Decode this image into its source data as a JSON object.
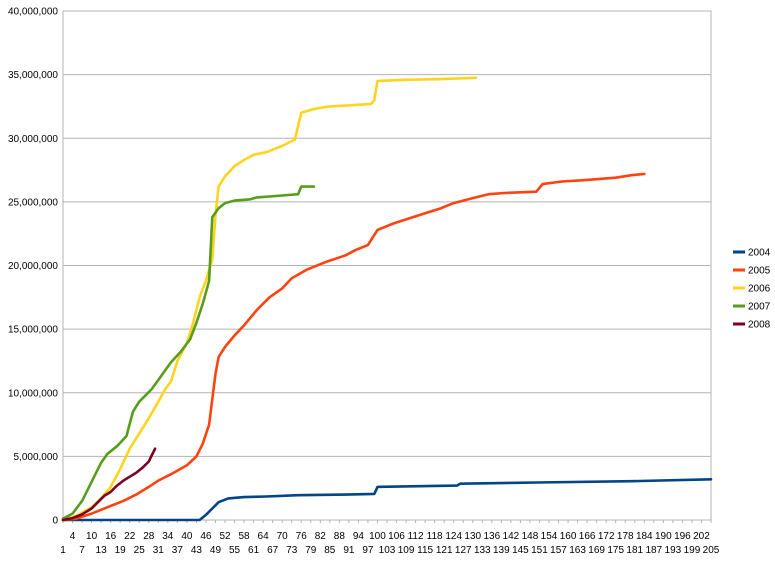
{
  "chart_data": {
    "type": "line",
    "title": "",
    "xlabel": "",
    "ylabel": "",
    "ylim": [
      0,
      40000000
    ],
    "xlim": [
      1,
      205
    ],
    "grid": "horizontal",
    "legend_position": "right",
    "y_ticks": [
      0,
      5000000,
      10000000,
      15000000,
      20000000,
      25000000,
      30000000,
      35000000,
      40000000
    ],
    "y_tick_labels": [
      "0",
      "5,000,000",
      "10,000,000",
      "15,000,000",
      "20,000,000",
      "25,000,000",
      "30,000,000",
      "35,000,000",
      "40,000,000"
    ],
    "x_ticks": [
      1,
      4,
      7,
      10,
      13,
      16,
      19,
      22,
      25,
      28,
      31,
      34,
      37,
      40,
      43,
      46,
      49,
      52,
      55,
      58,
      61,
      64,
      67,
      70,
      73,
      76,
      79,
      82,
      85,
      88,
      91,
      94,
      97,
      100,
      103,
      106,
      109,
      112,
      115,
      118,
      121,
      124,
      127,
      130,
      133,
      136,
      139,
      142,
      145,
      148,
      151,
      154,
      157,
      160,
      163,
      166,
      169,
      172,
      175,
      178,
      181,
      184,
      187,
      190,
      193,
      196,
      199,
      202,
      205
    ],
    "series": [
      {
        "name": "2004",
        "color": "#004586",
        "points": [
          [
            1,
            0
          ],
          [
            44,
            0
          ],
          [
            46,
            400000
          ],
          [
            48,
            900000
          ],
          [
            50,
            1400000
          ],
          [
            53,
            1700000
          ],
          [
            58,
            1800000
          ],
          [
            65,
            1850000
          ],
          [
            75,
            1950000
          ],
          [
            90,
            2000000
          ],
          [
            99,
            2050000
          ],
          [
            100,
            2600000
          ],
          [
            125,
            2700000
          ],
          [
            126,
            2850000
          ],
          [
            150,
            2950000
          ],
          [
            180,
            3050000
          ],
          [
            205,
            3200000
          ]
        ]
      },
      {
        "name": "2005",
        "color": "#ff420e",
        "points": [
          [
            1,
            0
          ],
          [
            5,
            100000
          ],
          [
            10,
            500000
          ],
          [
            13,
            800000
          ],
          [
            16,
            1100000
          ],
          [
            20,
            1500000
          ],
          [
            24,
            2000000
          ],
          [
            28,
            2600000
          ],
          [
            31,
            3100000
          ],
          [
            35,
            3600000
          ],
          [
            40,
            4300000
          ],
          [
            43,
            5000000
          ],
          [
            45,
            6000000
          ],
          [
            47,
            7500000
          ],
          [
            48,
            9500000
          ],
          [
            49,
            11500000
          ],
          [
            50,
            12800000
          ],
          [
            52,
            13600000
          ],
          [
            55,
            14500000
          ],
          [
            58,
            15300000
          ],
          [
            62,
            16500000
          ],
          [
            66,
            17500000
          ],
          [
            70,
            18200000
          ],
          [
            73,
            19000000
          ],
          [
            78,
            19700000
          ],
          [
            84,
            20300000
          ],
          [
            90,
            20800000
          ],
          [
            93,
            21200000
          ],
          [
            97,
            21600000
          ],
          [
            100,
            22800000
          ],
          [
            105,
            23300000
          ],
          [
            110,
            23700000
          ],
          [
            115,
            24100000
          ],
          [
            120,
            24500000
          ],
          [
            124,
            24900000
          ],
          [
            130,
            25300000
          ],
          [
            135,
            25600000
          ],
          [
            140,
            25700000
          ],
          [
            150,
            25800000
          ],
          [
            152,
            26400000
          ],
          [
            158,
            26600000
          ],
          [
            165,
            26700000
          ],
          [
            175,
            26900000
          ],
          [
            180,
            27100000
          ],
          [
            184,
            27200000
          ]
        ]
      },
      {
        "name": "2006",
        "color": "#ffd320",
        "points": [
          [
            1,
            0
          ],
          [
            5,
            300000
          ],
          [
            10,
            1000000
          ],
          [
            13,
            1700000
          ],
          [
            16,
            2600000
          ],
          [
            19,
            4000000
          ],
          [
            22,
            5600000
          ],
          [
            25,
            6800000
          ],
          [
            28,
            8000000
          ],
          [
            31,
            9300000
          ],
          [
            33,
            10200000
          ],
          [
            35,
            10900000
          ],
          [
            37,
            12500000
          ],
          [
            40,
            13900000
          ],
          [
            42,
            15500000
          ],
          [
            44,
            17500000
          ],
          [
            46,
            18800000
          ],
          [
            48,
            20500000
          ],
          [
            49,
            24000000
          ],
          [
            50,
            26200000
          ],
          [
            52,
            27000000
          ],
          [
            55,
            27800000
          ],
          [
            58,
            28300000
          ],
          [
            61,
            28700000
          ],
          [
            65,
            28900000
          ],
          [
            70,
            29400000
          ],
          [
            74,
            29900000
          ],
          [
            76,
            32000000
          ],
          [
            80,
            32300000
          ],
          [
            85,
            32500000
          ],
          [
            92,
            32600000
          ],
          [
            98,
            32700000
          ],
          [
            99,
            33000000
          ],
          [
            100,
            34500000
          ],
          [
            110,
            34600000
          ],
          [
            120,
            34650000
          ],
          [
            131,
            34750000
          ]
        ]
      },
      {
        "name": "2007",
        "color": "#579d1c",
        "points": [
          [
            1,
            100000
          ],
          [
            4,
            500000
          ],
          [
            7,
            1500000
          ],
          [
            10,
            3000000
          ],
          [
            13,
            4500000
          ],
          [
            15,
            5200000
          ],
          [
            18,
            5800000
          ],
          [
            21,
            6600000
          ],
          [
            23,
            8500000
          ],
          [
            25,
            9300000
          ],
          [
            27,
            9800000
          ],
          [
            29,
            10300000
          ],
          [
            31,
            11000000
          ],
          [
            33,
            11700000
          ],
          [
            35,
            12400000
          ],
          [
            38,
            13200000
          ],
          [
            41,
            14200000
          ],
          [
            43,
            15500000
          ],
          [
            45,
            17000000
          ],
          [
            47,
            18800000
          ],
          [
            48,
            23800000
          ],
          [
            50,
            24500000
          ],
          [
            52,
            24900000
          ],
          [
            55,
            25100000
          ],
          [
            60,
            25200000
          ],
          [
            62,
            25350000
          ],
          [
            70,
            25500000
          ],
          [
            75,
            25600000
          ],
          [
            76,
            26200000
          ],
          [
            80,
            26200000
          ]
        ]
      },
      {
        "name": "2008",
        "color": "#7e0021",
        "points": [
          [
            1,
            0
          ],
          [
            4,
            150000
          ],
          [
            7,
            450000
          ],
          [
            10,
            900000
          ],
          [
            12,
            1400000
          ],
          [
            14,
            1900000
          ],
          [
            16,
            2200000
          ],
          [
            18,
            2700000
          ],
          [
            20,
            3100000
          ],
          [
            22,
            3400000
          ],
          [
            24,
            3700000
          ],
          [
            26,
            4100000
          ],
          [
            28,
            4600000
          ],
          [
            29,
            5100000
          ],
          [
            30,
            5600000
          ]
        ]
      }
    ]
  }
}
